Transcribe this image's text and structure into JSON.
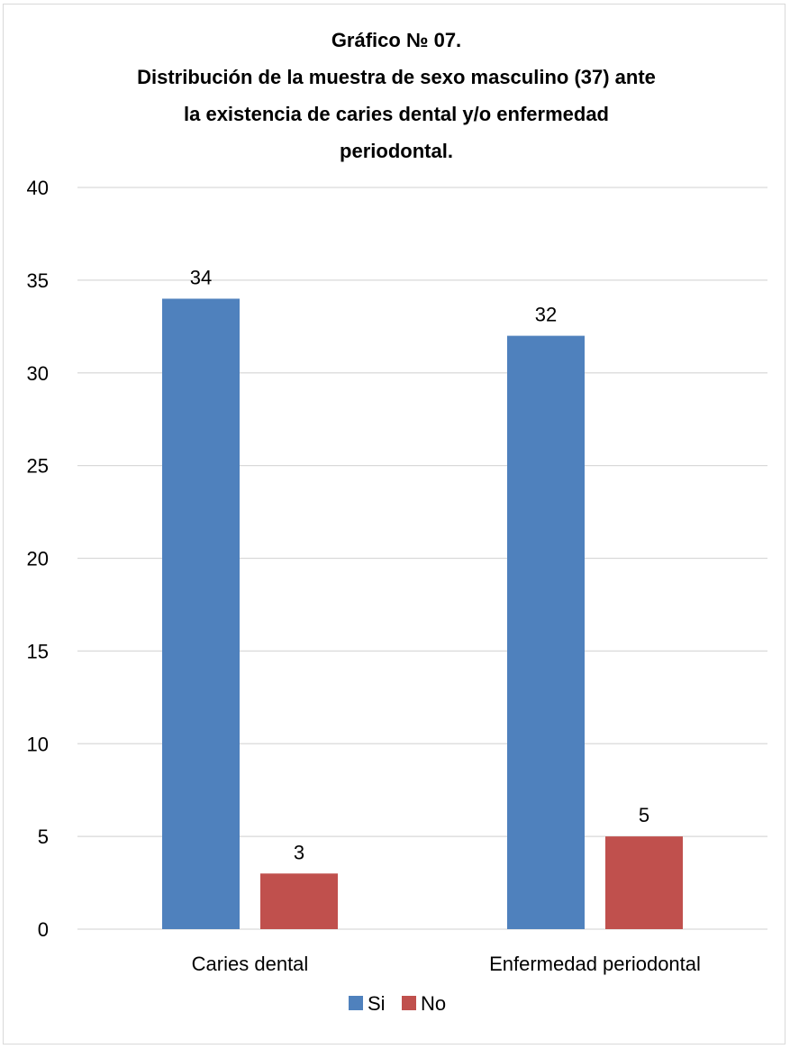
{
  "chart_data": {
    "type": "bar",
    "title_lines": [
      "Gráfico № 07.",
      "Distribución de la muestra de sexo masculino (37) ante",
      "la existencia de caries dental y/o enfermedad",
      "periodontal."
    ],
    "categories": [
      "Caries dental",
      "Enfermedad periodontal"
    ],
    "series": [
      {
        "name": "Si",
        "values": [
          34,
          32
        ],
        "color": "#4f81bd"
      },
      {
        "name": "No",
        "values": [
          3,
          5
        ],
        "color": "#c0504d"
      }
    ],
    "ylim": [
      0,
      40
    ],
    "yticks": [
      0,
      5,
      10,
      15,
      20,
      25,
      30,
      35,
      40
    ],
    "grid": true,
    "gridline_color": "#d9d9d9",
    "legend_position": "bottom"
  }
}
